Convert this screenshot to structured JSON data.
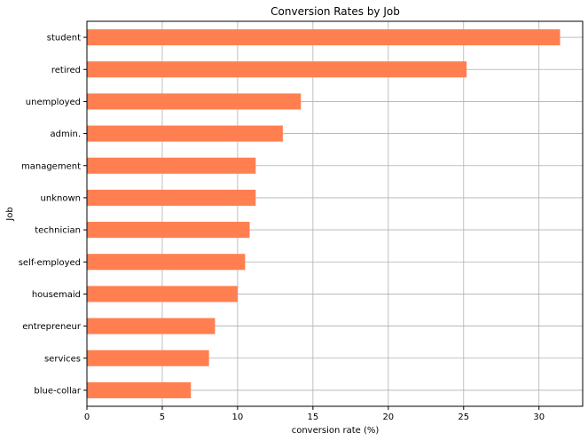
{
  "chart_data": {
    "type": "bar",
    "orientation": "horizontal",
    "title": "Conversion Rates by Job",
    "xlabel": "conversion rate (%)",
    "ylabel": "Job",
    "xlim": [
      0,
      32.9
    ],
    "xticks": [
      0,
      5,
      10,
      15,
      20,
      25,
      30
    ],
    "grid": true,
    "bar_color": "#ff7f50",
    "categories": [
      "student",
      "retired",
      "unemployed",
      "admin.",
      "management",
      "unknown",
      "technician",
      "self-employed",
      "housemaid",
      "entrepreneur",
      "services",
      "blue-collar"
    ],
    "values": [
      31.4,
      25.2,
      14.2,
      13.0,
      11.2,
      11.2,
      10.8,
      10.5,
      10.0,
      8.5,
      8.1,
      6.9
    ]
  }
}
